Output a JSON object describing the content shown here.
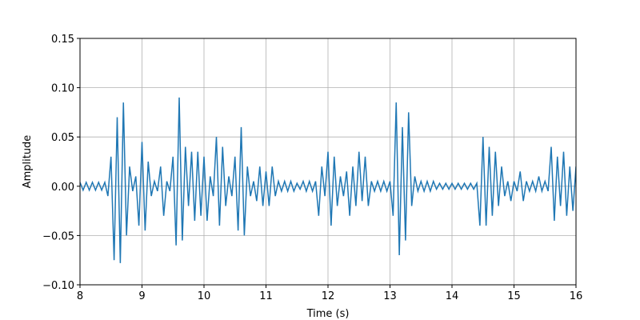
{
  "chart_data": {
    "type": "line",
    "xlabel": "Time (s)",
    "ylabel": "Amplitude",
    "color": "#1f77b4",
    "grid": true,
    "xlim": [
      8,
      16
    ],
    "ylim": [
      -0.1,
      0.15
    ],
    "xticks": [
      8,
      9,
      10,
      11,
      12,
      13,
      14,
      15,
      16
    ],
    "yticks": [
      {
        "value": -0.1,
        "label": "−0.10"
      },
      {
        "value": -0.05,
        "label": "−0.05"
      },
      {
        "value": 0,
        "label": "0.00"
      },
      {
        "value": 0.05,
        "label": "0.05"
      },
      {
        "value": 0.1,
        "label": "0.10"
      },
      {
        "value": 0.15,
        "label": "0.15"
      }
    ],
    "x": [
      8.0,
      8.05,
      8.1,
      8.15,
      8.2,
      8.25,
      8.3,
      8.35,
      8.4,
      8.45,
      8.5,
      8.55,
      8.6,
      8.65,
      8.7,
      8.75,
      8.8,
      8.85,
      8.9,
      8.95,
      9.0,
      9.05,
      9.1,
      9.15,
      9.2,
      9.25,
      9.3,
      9.35,
      9.4,
      9.45,
      9.5,
      9.55,
      9.6,
      9.65,
      9.7,
      9.75,
      9.8,
      9.85,
      9.9,
      9.95,
      10.0,
      10.05,
      10.1,
      10.15,
      10.2,
      10.25,
      10.3,
      10.35,
      10.4,
      10.45,
      10.5,
      10.55,
      10.6,
      10.65,
      10.7,
      10.75,
      10.8,
      10.85,
      10.9,
      10.95,
      11.0,
      11.05,
      11.1,
      11.15,
      11.2,
      11.25,
      11.3,
      11.35,
      11.4,
      11.45,
      11.5,
      11.55,
      11.6,
      11.65,
      11.7,
      11.75,
      11.8,
      11.85,
      11.9,
      11.95,
      12.0,
      12.05,
      12.1,
      12.15,
      12.2,
      12.25,
      12.3,
      12.35,
      12.4,
      12.45,
      12.5,
      12.55,
      12.6,
      12.65,
      12.7,
      12.75,
      12.8,
      12.85,
      12.9,
      12.95,
      13.0,
      13.05,
      13.1,
      13.15,
      13.2,
      13.25,
      13.3,
      13.35,
      13.4,
      13.45,
      13.5,
      13.55,
      13.6,
      13.65,
      13.7,
      13.75,
      13.8,
      13.85,
      13.9,
      13.95,
      14.0,
      14.05,
      14.1,
      14.15,
      14.2,
      14.25,
      14.3,
      14.35,
      14.4,
      14.45,
      14.5,
      14.55,
      14.6,
      14.65,
      14.7,
      14.75,
      14.8,
      14.85,
      14.9,
      14.95,
      15.0,
      15.05,
      15.1,
      15.15,
      15.2,
      15.25,
      15.3,
      15.35,
      15.4,
      15.45,
      15.5,
      15.55,
      15.6,
      15.65,
      15.7,
      15.75,
      15.8,
      15.85,
      15.9,
      15.95,
      16.0
    ],
    "values": [
      0.004,
      -0.004,
      0.004,
      -0.004,
      0.004,
      -0.004,
      0.004,
      -0.004,
      0.004,
      -0.01,
      0.03,
      -0.075,
      0.07,
      -0.078,
      0.085,
      -0.05,
      0.02,
      -0.005,
      0.01,
      -0.04,
      0.045,
      -0.045,
      0.025,
      -0.01,
      0.005,
      -0.005,
      0.02,
      -0.03,
      0.005,
      -0.005,
      0.03,
      -0.06,
      0.09,
      -0.055,
      0.04,
      -0.02,
      0.035,
      -0.035,
      0.035,
      -0.03,
      0.03,
      -0.035,
      0.01,
      -0.01,
      0.05,
      -0.04,
      0.04,
      -0.02,
      0.01,
      -0.01,
      0.03,
      -0.045,
      0.06,
      -0.05,
      0.02,
      -0.01,
      0.005,
      -0.015,
      0.02,
      -0.02,
      0.015,
      -0.02,
      0.02,
      -0.01,
      0.005,
      -0.005,
      0.005,
      -0.005,
      0.005,
      -0.005,
      0.003,
      -0.003,
      0.005,
      -0.005,
      0.005,
      -0.005,
      0.005,
      -0.03,
      0.02,
      -0.01,
      0.035,
      -0.04,
      0.03,
      -0.02,
      0.01,
      -0.01,
      0.015,
      -0.03,
      0.02,
      -0.02,
      0.035,
      -0.015,
      0.03,
      -0.02,
      0.005,
      -0.005,
      0.005,
      -0.005,
      0.005,
      -0.005,
      0.005,
      -0.03,
      0.085,
      -0.07,
      0.06,
      -0.055,
      0.075,
      -0.02,
      0.01,
      -0.005,
      0.005,
      -0.005,
      0.005,
      -0.005,
      0.005,
      -0.003,
      0.003,
      -0.003,
      0.003,
      -0.003,
      0.003,
      -0.003,
      0.003,
      -0.003,
      0.003,
      -0.003,
      0.003,
      -0.003,
      0.003,
      -0.04,
      0.05,
      -0.04,
      0.04,
      -0.03,
      0.035,
      -0.02,
      0.02,
      -0.01,
      0.005,
      -0.015,
      0.005,
      -0.005,
      0.015,
      -0.015,
      0.005,
      -0.005,
      0.005,
      -0.005,
      0.01,
      -0.005,
      0.005,
      -0.005,
      0.04,
      -0.035,
      0.03,
      -0.02,
      0.035,
      -0.03,
      0.02,
      -0.025,
      0.02
    ]
  }
}
